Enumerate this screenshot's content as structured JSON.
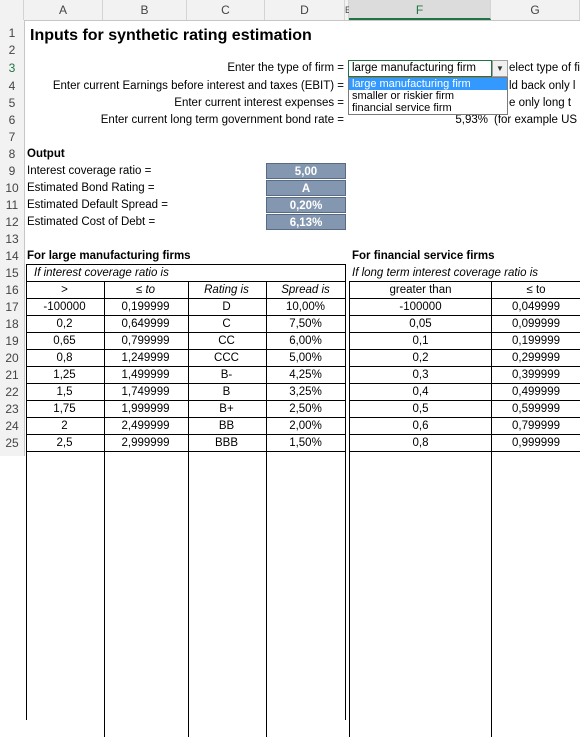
{
  "columns": [
    "A",
    "B",
    "C",
    "D",
    "E",
    "F",
    "G"
  ],
  "rows": [
    "1",
    "2",
    "3",
    "4",
    "5",
    "6",
    "7",
    "8",
    "9",
    "10",
    "11",
    "12",
    "13",
    "14",
    "15",
    "16",
    "17",
    "18",
    "19",
    "20",
    "21",
    "22",
    "23",
    "24",
    "25"
  ],
  "title": "Inputs for synthetic rating estimation",
  "inputs": {
    "firm_type_label": "Enter the type of firm =",
    "ebit_label": "Enter current Earnings before interest and taxes (EBIT) =",
    "interest_label": "Enter current interest expenses =",
    "bond_rate_label": "Enter current long term government bond rate =",
    "firm_type_value": "large manufacturing firm",
    "bond_rate_value": "5,93%",
    "g3": "elect type of fi",
    "g4": "ld back only l",
    "g5": "e only long t",
    "g6": "(for example US"
  },
  "dropdown": {
    "options": [
      "large manufacturing firm",
      "smaller or riskier firm",
      "financial service firm"
    ],
    "selected_index": 0
  },
  "output": {
    "header": "Output",
    "labels": [
      "Interest  coverage ratio =",
      "Estimated Bond Rating =",
      "Estimated Default Spread =",
      "Estimated Cost of Debt ="
    ],
    "values": [
      "5,00",
      "A",
      "0,20%",
      "6,13%"
    ]
  },
  "large_table": {
    "title": "For large manufacturing firms",
    "subtitle": "If interest coverage ratio is",
    "headers": [
      ">",
      "≤ to",
      "Rating is",
      "Spread is"
    ],
    "rows": [
      [
        "-100000",
        "0,199999",
        "D",
        "10,00%"
      ],
      [
        "0,2",
        "0,649999",
        "C",
        "7,50%"
      ],
      [
        "0,65",
        "0,799999",
        "CC",
        "6,00%"
      ],
      [
        "0,8",
        "1,249999",
        "CCC",
        "5,00%"
      ],
      [
        "1,25",
        "1,499999",
        "B-",
        "4,25%"
      ],
      [
        "1,5",
        "1,749999",
        "B",
        "3,25%"
      ],
      [
        "1,75",
        "1,999999",
        "B+",
        "2,50%"
      ],
      [
        "2",
        "2,499999",
        "BB",
        "2,00%"
      ],
      [
        "2,5",
        "2,999999",
        "BBB",
        "1,50%"
      ]
    ]
  },
  "fin_table": {
    "title": "For financial service firms",
    "subtitle": "If long term interest coverage ratio is",
    "headers": [
      "greater than",
      "≤ to"
    ],
    "rows": [
      [
        "-100000",
        "0,049999"
      ],
      [
        "0,05",
        "0,099999"
      ],
      [
        "0,1",
        "0,199999"
      ],
      [
        "0,2",
        "0,299999"
      ],
      [
        "0,3",
        "0,399999"
      ],
      [
        "0,4",
        "0,499999"
      ],
      [
        "0,5",
        "0,599999"
      ],
      [
        "0,6",
        "0,799999"
      ],
      [
        "0,8",
        "0,999999"
      ]
    ]
  }
}
